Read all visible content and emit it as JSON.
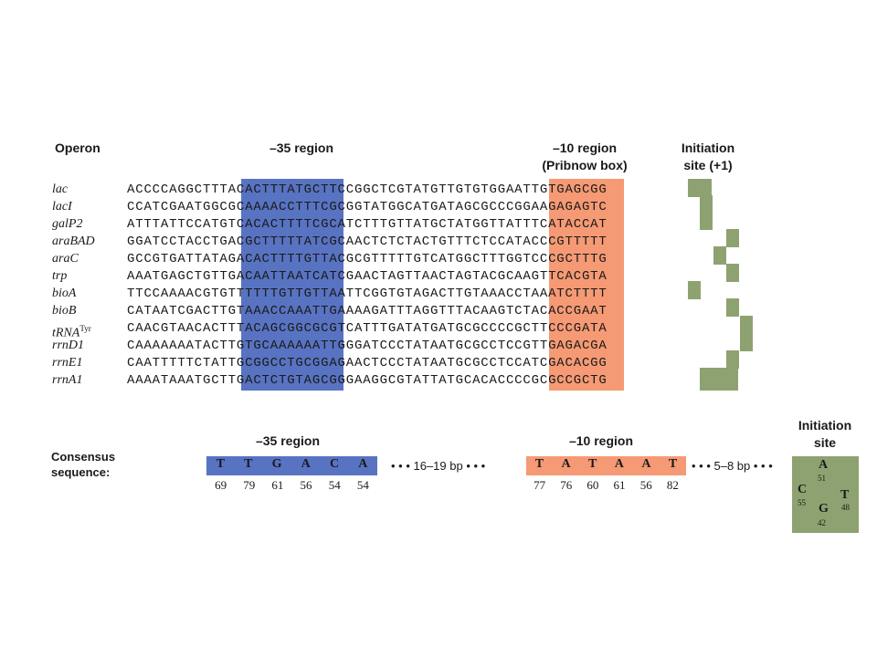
{
  "headers": {
    "operon": "Operon",
    "region35": "–35 region",
    "region10": "–10 region",
    "pribnow": "(Pribnow box)",
    "init_line1": "Initiation",
    "init_line2": "site (+1)"
  },
  "operons": [
    {
      "name": "lac",
      "sup": "",
      "seq": "ACCCCAGGCTTTACACTTTATGCTTCCGGCTCGTATGTTGTGTGGAATTGTGAGCGG"
    },
    {
      "name": "lacI",
      "sup": "",
      "seq": "CCATCGAATGGCGCAAAACCTTTCGCGGTATGGCATGATAGCGCCCGGAAGAGAGTC"
    },
    {
      "name": "galP2",
      "sup": "",
      "seq": "ATTTATTCCATGTCACACTTTTCGCATCTTTGTTATGCTATGGTTATTTCATACCAT"
    },
    {
      "name": "araBAD",
      "sup": "",
      "seq": "GGATCCTACCTGACGCTTTTTATCGCAACTCTCTACTGTTTCTCCATACCCGTTTTT"
    },
    {
      "name": "araC",
      "sup": "",
      "seq": "GCCGTGATTATAGACACTTTTGTTACGCGTTTTTGTCATGGCTTTGGTCCCGCTTTG"
    },
    {
      "name": "trp",
      "sup": "",
      "seq": "AAATGAGCTGTTGACAATTAATCATCGAACTAGTTAACTAGTACGCAAGTTCACGTA"
    },
    {
      "name": "bioA",
      "sup": "",
      "seq": "TTCCAAAACGTGTTTTTTGTTGTTAATTCGGTGTAGACTTGTAAACCTAAATCTTTT"
    },
    {
      "name": "bioB",
      "sup": "",
      "seq": "CATAATCGACTTGTAAACCAAATTGAAAAGATTTAGGTTTACAAGTCTACACCGAAT"
    },
    {
      "name": "tRNA",
      "sup": "Tyr",
      "seq": "CAACGTAACACTTTACAGCGGCGCGTCATTTGATATGATGCGCCCCGCTTCCCGATA"
    },
    {
      "name": "rrnD1",
      "sup": "",
      "seq": "CAAAAAAATACTTGTGCAAAAAATTGGGATCCCTATAATGCGCCTCCGTTGAGACGA"
    },
    {
      "name": "rrnE1",
      "sup": "",
      "seq": "CAATTTTTCTATTGCGGCCTGCGGAGAACTCCCTATAATGCGCCTCCATCGACACGG"
    },
    {
      "name": "rrnA1",
      "sup": "",
      "seq": "AAAATAAATGCTTGACTCTGTAGCGGGAAGGCGTATTATGCACACCCCGCGCCGCTG"
    }
  ],
  "consensus": {
    "label_line1": "Consensus",
    "label_line2": "sequence:",
    "region35_title": "–35 region",
    "region10_title": "–10 region",
    "init_title_line1": "Initiation",
    "init_title_line2": "site",
    "region35_letters": [
      "T",
      "T",
      "G",
      "A",
      "C",
      "A"
    ],
    "region35_percent": [
      "69",
      "79",
      "61",
      "56",
      "54",
      "54"
    ],
    "gap1": "• • •  16–19 bp  • • •",
    "region10_letters": [
      "T",
      "A",
      "T",
      "A",
      "A",
      "T"
    ],
    "region10_percent": [
      "77",
      "76",
      "60",
      "61",
      "56",
      "82"
    ],
    "gap2": "• • •  5–8 bp  • • •",
    "init_letters": {
      "A": "A",
      "C": "C",
      "T": "T",
      "G": "G"
    },
    "init_percent": {
      "A": "51",
      "C": "55",
      "T": "48",
      "G": "42"
    }
  },
  "colors": {
    "minus35": "#5873c2",
    "minus10": "#f59a74",
    "initiation": "#8ea271"
  }
}
